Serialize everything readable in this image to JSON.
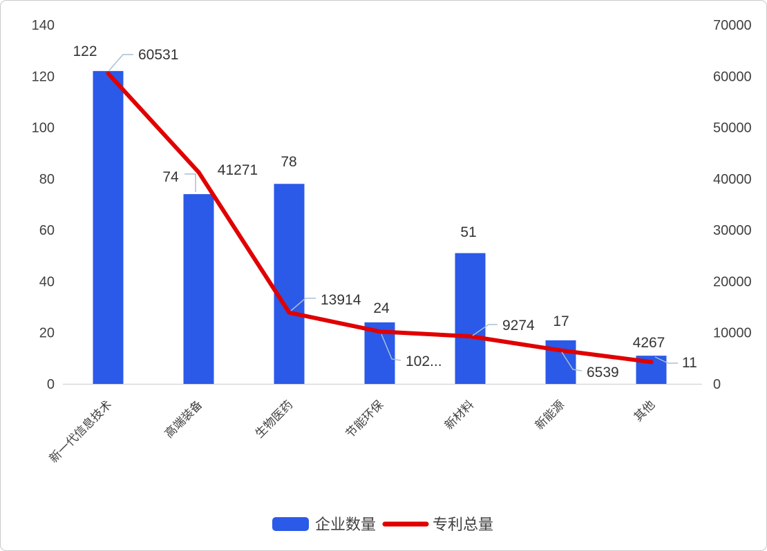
{
  "chart_data": {
    "type": "combo",
    "categories": [
      "新一代信息技术",
      "高端装备",
      "生物医药",
      "节能环保",
      "新材料",
      "新能源",
      "其他"
    ],
    "series": [
      {
        "name": "企业数量",
        "type": "bar",
        "axis": "left",
        "color": "#2B59E8",
        "values": [
          122,
          74,
          78,
          24,
          51,
          17,
          11
        ],
        "labels": [
          "122",
          "74",
          "78",
          "24",
          "51",
          "17",
          "11"
        ]
      },
      {
        "name": "专利总量",
        "type": "line",
        "axis": "right",
        "color": "#E00000",
        "values": [
          60531,
          41271,
          13914,
          10200,
          9274,
          6539,
          4267
        ],
        "labels": [
          "60531",
          "41271",
          "13914",
          "102...",
          "9274",
          "6539",
          "4267"
        ]
      }
    ],
    "left_axis": {
      "min": 0,
      "max": 140,
      "step": 20,
      "ticks": [
        "0",
        "20",
        "40",
        "60",
        "80",
        "100",
        "120",
        "140"
      ]
    },
    "right_axis": {
      "min": 0,
      "max": 70000,
      "step": 10000,
      "ticks": [
        "0",
        "10000",
        "20000",
        "30000",
        "40000",
        "50000",
        "60000",
        "70000"
      ]
    },
    "legend": [
      {
        "label": "企业数量",
        "swatch": "bar"
      },
      {
        "label": "专利总量",
        "swatch": "line"
      }
    ],
    "grid": false,
    "legend_position": "bottom"
  },
  "colors": {
    "bar": "#2B59E8",
    "line": "#E00000",
    "text": "#404040",
    "axis_line": "#D8D8D8",
    "leader": "#A9BFD4",
    "card_border": "#C9C9C9",
    "background": "#FFFFFF"
  }
}
